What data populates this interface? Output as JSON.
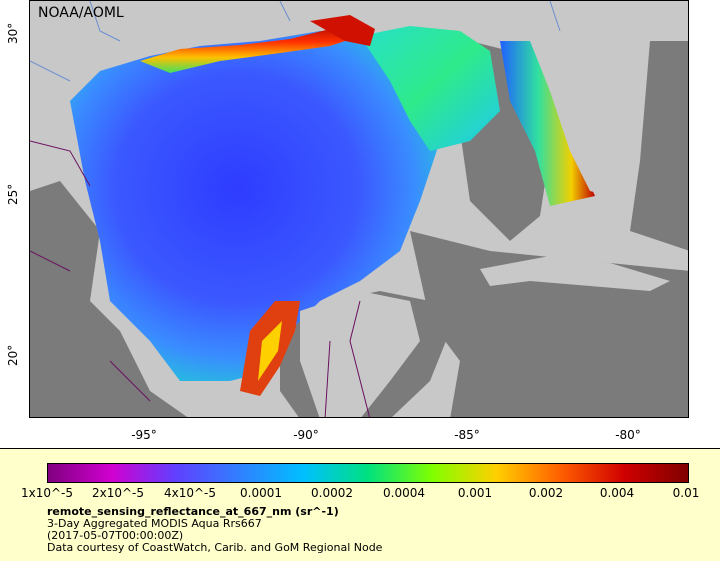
{
  "map": {
    "source_label": "NOAA/AOML",
    "colors": {
      "land": "#c8c8c8",
      "masked": "#7b7b7b",
      "coast": "#d23020",
      "deep": "#3b59ff",
      "mid": "#5aa0ff",
      "shelf": "#2eea8a",
      "border": "#6a1060"
    },
    "x_ticks": [
      "-95°",
      "-90°",
      "-85°",
      "-80°"
    ],
    "y_ticks": [
      "30°",
      "25°",
      "20°"
    ]
  },
  "legend": {
    "colorbar_ticks": [
      "1x10^-5",
      "2x10^-5",
      "4x10^-5",
      "0.0001",
      "0.0002",
      "0.0004",
      "0.001",
      "0.002",
      "0.004",
      "0.01"
    ],
    "colormap": [
      "#800080",
      "#d000d0",
      "#6040ff",
      "#3080ff",
      "#00c0ff",
      "#00e080",
      "#80ff00",
      "#ffd000",
      "#ff6000",
      "#d00000",
      "#800000"
    ],
    "title": "remote_sensing_reflectance_at_667_nm (sr^-1)",
    "line1": "3-Day Aggregated MODIS Aqua Rrs667",
    "line2": "(2017-05-07T00:00:00Z)",
    "line3": "Data courtesy of CoastWatch, Carib. and GoM Regional Node"
  }
}
